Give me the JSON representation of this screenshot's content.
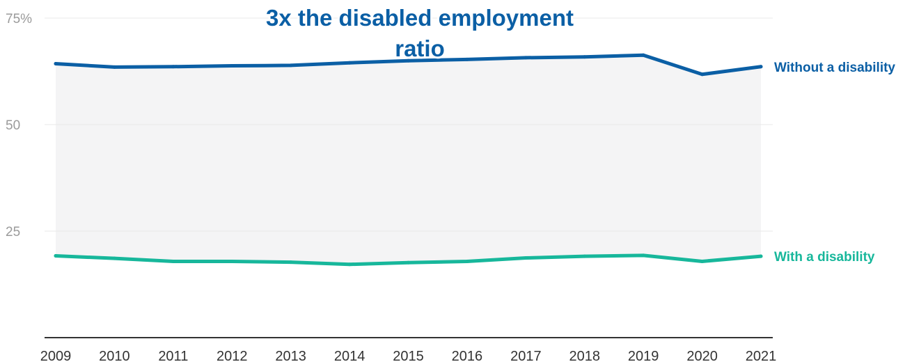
{
  "chart_data": {
    "type": "line",
    "title": "",
    "xlabel": "",
    "ylabel": "",
    "x": [
      "2009",
      "2010",
      "2011",
      "2012",
      "2013",
      "2014",
      "2015",
      "2016",
      "2017",
      "2018",
      "2019",
      "2020",
      "2021"
    ],
    "yticks": [
      {
        "value": 25,
        "label": "25"
      },
      {
        "value": 50,
        "label": "50"
      },
      {
        "value": 75,
        "label": "75%"
      }
    ],
    "ylim": [
      0,
      75
    ],
    "grid": true,
    "series": [
      {
        "name": "Without a disability",
        "color": "#0b5fa5",
        "values": [
          64.3,
          63.5,
          63.6,
          63.8,
          63.9,
          64.5,
          65.0,
          65.3,
          65.7,
          65.9,
          66.3,
          61.8,
          63.6
        ]
      },
      {
        "name": "With a disability",
        "color": "#17b79b",
        "values": [
          19.2,
          18.6,
          17.9,
          17.9,
          17.7,
          17.2,
          17.6,
          17.9,
          18.7,
          19.1,
          19.3,
          17.9,
          19.1
        ]
      }
    ],
    "fill_between": {
      "color": "#f4f4f5"
    },
    "annotation": {
      "lines": [
        "3x the disabled employment",
        "ratio"
      ],
      "color": "#0b5fa5"
    }
  }
}
